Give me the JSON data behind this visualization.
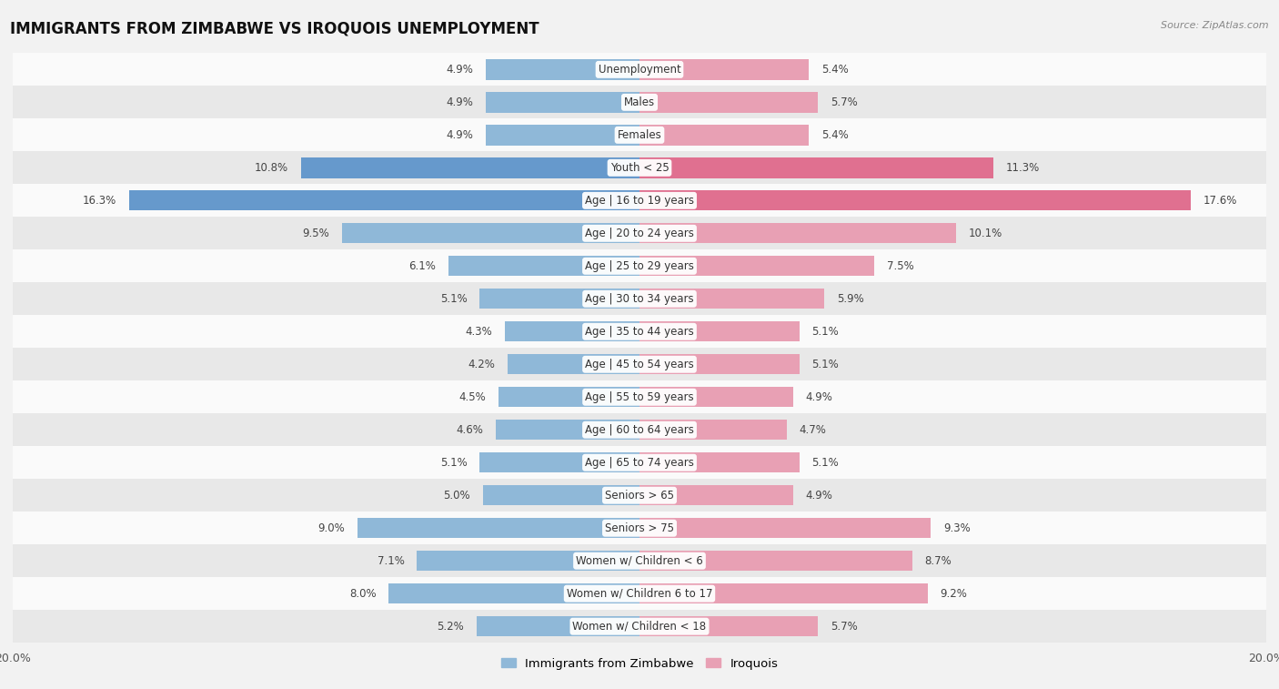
{
  "title": "IMMIGRANTS FROM ZIMBABWE VS IROQUOIS UNEMPLOYMENT",
  "source": "Source: ZipAtlas.com",
  "categories": [
    "Unemployment",
    "Males",
    "Females",
    "Youth < 25",
    "Age | 16 to 19 years",
    "Age | 20 to 24 years",
    "Age | 25 to 29 years",
    "Age | 30 to 34 years",
    "Age | 35 to 44 years",
    "Age | 45 to 54 years",
    "Age | 55 to 59 years",
    "Age | 60 to 64 years",
    "Age | 65 to 74 years",
    "Seniors > 65",
    "Seniors > 75",
    "Women w/ Children < 6",
    "Women w/ Children 6 to 17",
    "Women w/ Children < 18"
  ],
  "zimbabwe_values": [
    4.9,
    4.9,
    4.9,
    10.8,
    16.3,
    9.5,
    6.1,
    5.1,
    4.3,
    4.2,
    4.5,
    4.6,
    5.1,
    5.0,
    9.0,
    7.1,
    8.0,
    5.2
  ],
  "iroquois_values": [
    5.4,
    5.7,
    5.4,
    11.3,
    17.6,
    10.1,
    7.5,
    5.9,
    5.1,
    5.1,
    4.9,
    4.7,
    5.1,
    4.9,
    9.3,
    8.7,
    9.2,
    5.7
  ],
  "zimbabwe_color": "#8fb8d8",
  "iroquois_color": "#e8a0b4",
  "zimbabwe_highlight_color": "#6699cc",
  "iroquois_highlight_color": "#e07090",
  "highlight_row_youth": 3,
  "highlight_row_age16": 4,
  "max_value": 20.0,
  "background_color": "#f2f2f2",
  "row_color_light": "#fafafa",
  "row_color_dark": "#e8e8e8",
  "label_fontsize": 8.5,
  "title_fontsize": 12,
  "legend_fontsize": 9.5,
  "value_fontsize": 8.5
}
